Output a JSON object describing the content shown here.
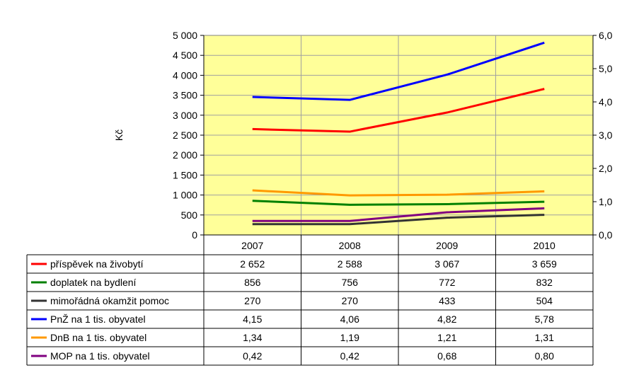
{
  "chart_data": {
    "type": "line",
    "ylabel": "Kč",
    "categories": [
      "2007",
      "2008",
      "2009",
      "2010"
    ],
    "ylim_left": [
      0,
      5000
    ],
    "ylim_right": [
      0,
      6
    ],
    "left_ticks": [
      "0",
      "500",
      "1 000",
      "1 500",
      "2 000",
      "2 500",
      "3 000",
      "3 500",
      "4 000",
      "4 500",
      "5 000"
    ],
    "right_ticks": [
      "0,0",
      "1,0",
      "2,0",
      "3,0",
      "4,0",
      "5,0",
      "6,0"
    ],
    "grid": true,
    "plot_background": "#FFFF99",
    "series": [
      {
        "name": "příspěvek na živobytí",
        "axis": "left",
        "color": "#FF0000",
        "values": [
          2652,
          2588,
          3067,
          3659
        ],
        "labels": [
          "2 652",
          "2 588",
          "3 067",
          "3 659"
        ]
      },
      {
        "name": "doplatek na bydlení",
        "axis": "left",
        "color": "#008000",
        "values": [
          856,
          756,
          772,
          832
        ],
        "labels": [
          "856",
          "756",
          "772",
          "832"
        ]
      },
      {
        "name": "mimořádná okamžit pomoc",
        "axis": "left",
        "color": "#333333",
        "values": [
          270,
          270,
          433,
          504
        ],
        "labels": [
          "270",
          "270",
          "433",
          "504"
        ]
      },
      {
        "name": "PnŽ na 1 tis. obyvatel",
        "axis": "right",
        "color": "#0000FF",
        "values": [
          4.15,
          4.06,
          4.82,
          5.78
        ],
        "labels": [
          "4,15",
          "4,06",
          "4,82",
          "5,78"
        ]
      },
      {
        "name": "DnB na 1 tis. obyvatel",
        "axis": "right",
        "color": "#FF9900",
        "values": [
          1.34,
          1.19,
          1.21,
          1.31
        ],
        "labels": [
          "1,34",
          "1,19",
          "1,21",
          "1,31"
        ]
      },
      {
        "name": "MOP na 1 tis. obyvatel",
        "axis": "right",
        "color": "#800080",
        "values": [
          0.42,
          0.42,
          0.68,
          0.8
        ],
        "labels": [
          "0,42",
          "0,42",
          "0,68",
          "0,80"
        ]
      }
    ]
  }
}
